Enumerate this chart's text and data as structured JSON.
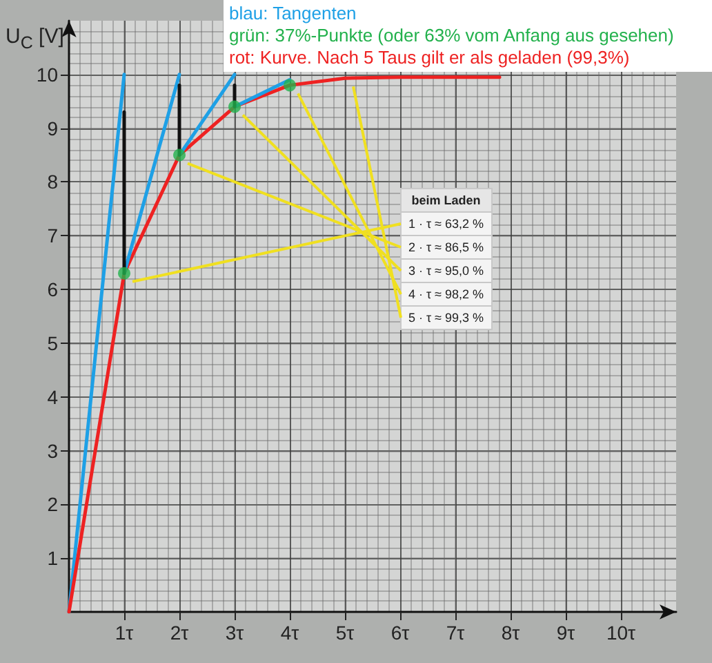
{
  "chart_data": {
    "type": "line",
    "ylabel": "U$_{C}$ [V]",
    "xlim": [
      0,
      11
    ],
    "ylim": [
      0,
      11
    ],
    "xticks": [
      {
        "value": 1,
        "label": "1τ"
      },
      {
        "value": 2,
        "label": "2τ"
      },
      {
        "value": 3,
        "label": "3τ"
      },
      {
        "value": 4,
        "label": "4τ"
      },
      {
        "value": 5,
        "label": "5τ"
      },
      {
        "value": 6,
        "label": "6τ"
      },
      {
        "value": 7,
        "label": "7τ"
      },
      {
        "value": 8,
        "label": "8τ"
      },
      {
        "value": 9,
        "label": "9τ"
      },
      {
        "value": 10,
        "label": "10τ"
      }
    ],
    "yticks": [
      1,
      2,
      3,
      4,
      5,
      6,
      7,
      8,
      9,
      10
    ],
    "grid": true,
    "series": [
      {
        "color": "#1ea0e6",
        "x": [
          0,
          1
        ],
        "values": [
          0,
          10
        ]
      },
      {
        "type": "scatter",
        "color": "#22b14c",
        "x": [
          1,
          2,
          3,
          4
        ],
        "values": [
          6.3,
          8.5,
          9.4,
          9.8
        ]
      },
      {
        "color": "#ee2222",
        "x": [
          0,
          1,
          2,
          3,
          4,
          5,
          6,
          7.8
        ],
        "values": [
          0,
          6.3,
          8.5,
          9.4,
          9.8,
          9.93,
          9.95,
          9.95
        ]
      },
      {
        "color": "#1ea0e6",
        "x": [
          1,
          2
        ],
        "values": [
          6.3,
          10
        ]
      },
      {
        "color": "#1ea0e6",
        "x": [
          2,
          3
        ],
        "values": [
          8.5,
          10
        ]
      },
      {
        "color": "#1ea0e6",
        "x": [
          3,
          4
        ],
        "values": [
          9.4,
          9.9
        ]
      },
      {
        "color": "#111111",
        "x": [
          1,
          1
        ],
        "values": [
          6.3,
          9.3
        ]
      },
      {
        "color": "#111111",
        "x": [
          2,
          2
        ],
        "values": [
          8.5,
          9.8
        ]
      },
      {
        "color": "#111111",
        "x": [
          3,
          3
        ],
        "values": [
          9.4,
          9.8
        ]
      }
    ],
    "annotations": [
      "blau: Tangenten",
      "grün: 37%-Punkte (oder 63% vom Anfang aus gesehen)",
      "rot: Kurve. Nach 5 Taus gilt er als geladen (99,3%)",
      "beim Laden",
      "1 · τ ≈ 63,2 %",
      "2 · τ ≈ 86,5 %",
      "3 · τ ≈ 95,0 %",
      "4 · τ ≈ 98,2 %",
      "5 · τ ≈ 99,3 %"
    ]
  }
}
